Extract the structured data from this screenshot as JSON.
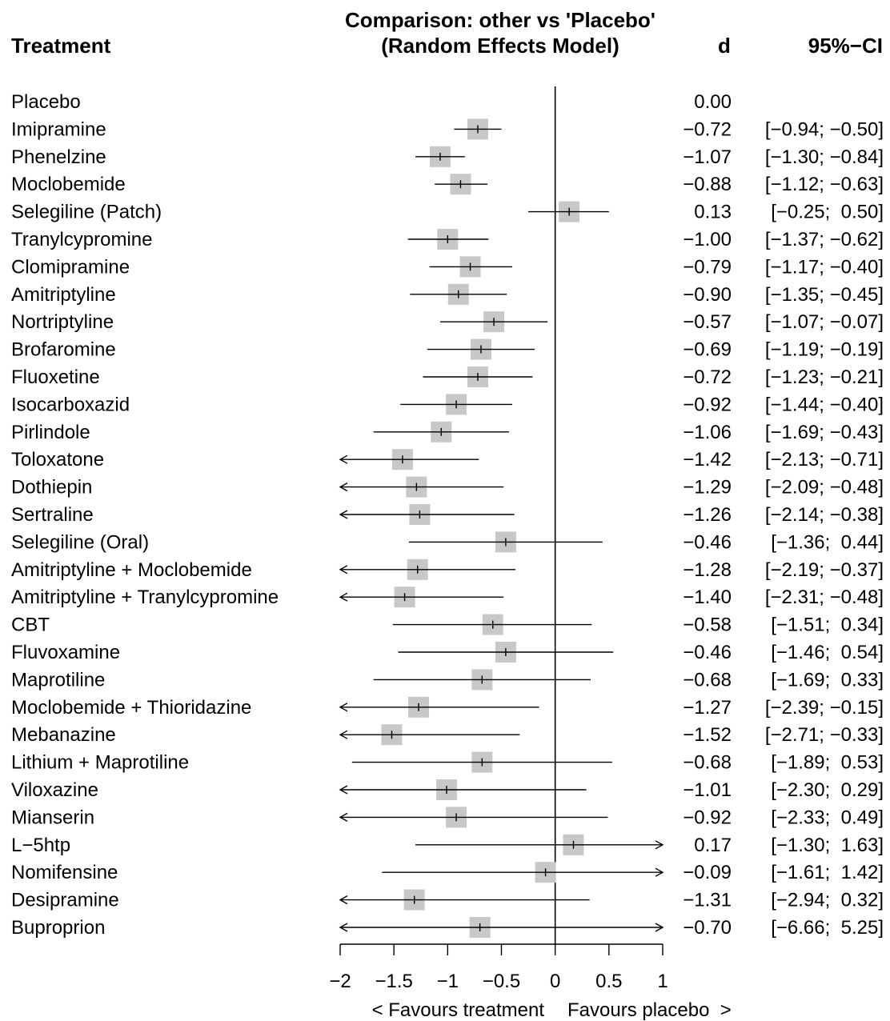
{
  "header": {
    "treatment_label": "Treatment",
    "comparison_line1": "Comparison: other vs 'Placebo'",
    "comparison_line2": "(Random Effects Model)",
    "d_label": "d",
    "ci_label": "95%−CI"
  },
  "chart_data": {
    "type": "forest",
    "reference": "Placebo",
    "rows": [
      {
        "treatment": "Placebo",
        "d": 0.0,
        "lower": null,
        "upper": null,
        "d_text": "0.00",
        "ci_text": ""
      },
      {
        "treatment": "Imipramine",
        "d": -0.72,
        "lower": -0.94,
        "upper": -0.5,
        "d_text": "−0.72",
        "ci_text": "[−0.94; −0.50]"
      },
      {
        "treatment": "Phenelzine",
        "d": -1.07,
        "lower": -1.3,
        "upper": -0.84,
        "d_text": "−1.07",
        "ci_text": "[−1.30; −0.84]"
      },
      {
        "treatment": "Moclobemide",
        "d": -0.88,
        "lower": -1.12,
        "upper": -0.63,
        "d_text": "−0.88",
        "ci_text": "[−1.12; −0.63]"
      },
      {
        "treatment": "Selegiline (Patch)",
        "d": 0.13,
        "lower": -0.25,
        "upper": 0.5,
        "d_text": "0.13",
        "ci_text": "[−0.25;  0.50]"
      },
      {
        "treatment": "Tranylcypromine",
        "d": -1.0,
        "lower": -1.37,
        "upper": -0.62,
        "d_text": "−1.00",
        "ci_text": "[−1.37; −0.62]"
      },
      {
        "treatment": "Clomipramine",
        "d": -0.79,
        "lower": -1.17,
        "upper": -0.4,
        "d_text": "−0.79",
        "ci_text": "[−1.17; −0.40]"
      },
      {
        "treatment": "Amitriptyline",
        "d": -0.9,
        "lower": -1.35,
        "upper": -0.45,
        "d_text": "−0.90",
        "ci_text": "[−1.35; −0.45]"
      },
      {
        "treatment": "Nortriptyline",
        "d": -0.57,
        "lower": -1.07,
        "upper": -0.07,
        "d_text": "−0.57",
        "ci_text": "[−1.07; −0.07]"
      },
      {
        "treatment": "Brofaromine",
        "d": -0.69,
        "lower": -1.19,
        "upper": -0.19,
        "d_text": "−0.69",
        "ci_text": "[−1.19; −0.19]"
      },
      {
        "treatment": "Fluoxetine",
        "d": -0.72,
        "lower": -1.23,
        "upper": -0.21,
        "d_text": "−0.72",
        "ci_text": "[−1.23; −0.21]"
      },
      {
        "treatment": "Isocarboxazid",
        "d": -0.92,
        "lower": -1.44,
        "upper": -0.4,
        "d_text": "−0.92",
        "ci_text": "[−1.44; −0.40]"
      },
      {
        "treatment": "Pirlindole",
        "d": -1.06,
        "lower": -1.69,
        "upper": -0.43,
        "d_text": "−1.06",
        "ci_text": "[−1.69; −0.43]"
      },
      {
        "treatment": "Toloxatone",
        "d": -1.42,
        "lower": -2.13,
        "upper": -0.71,
        "d_text": "−1.42",
        "ci_text": "[−2.13; −0.71]"
      },
      {
        "treatment": "Dothiepin",
        "d": -1.29,
        "lower": -2.09,
        "upper": -0.48,
        "d_text": "−1.29",
        "ci_text": "[−2.09; −0.48]"
      },
      {
        "treatment": "Sertraline",
        "d": -1.26,
        "lower": -2.14,
        "upper": -0.38,
        "d_text": "−1.26",
        "ci_text": "[−2.14; −0.38]"
      },
      {
        "treatment": "Selegiline (Oral)",
        "d": -0.46,
        "lower": -1.36,
        "upper": 0.44,
        "d_text": "−0.46",
        "ci_text": "[−1.36;  0.44]"
      },
      {
        "treatment": "Amitriptyline + Moclobemide",
        "d": -1.28,
        "lower": -2.19,
        "upper": -0.37,
        "d_text": "−1.28",
        "ci_text": "[−2.19; −0.37]"
      },
      {
        "treatment": "Amitriptyline + Tranylcypromine",
        "d": -1.4,
        "lower": -2.31,
        "upper": -0.48,
        "d_text": "−1.40",
        "ci_text": "[−2.31; −0.48]"
      },
      {
        "treatment": "CBT",
        "d": -0.58,
        "lower": -1.51,
        "upper": 0.34,
        "d_text": "−0.58",
        "ci_text": "[−1.51;  0.34]"
      },
      {
        "treatment": "Fluvoxamine",
        "d": -0.46,
        "lower": -1.46,
        "upper": 0.54,
        "d_text": "−0.46",
        "ci_text": "[−1.46;  0.54]"
      },
      {
        "treatment": "Maprotiline",
        "d": -0.68,
        "lower": -1.69,
        "upper": 0.33,
        "d_text": "−0.68",
        "ci_text": "[−1.69;  0.33]"
      },
      {
        "treatment": "Moclobemide + Thioridazine",
        "d": -1.27,
        "lower": -2.39,
        "upper": -0.15,
        "d_text": "−1.27",
        "ci_text": "[−2.39; −0.15]"
      },
      {
        "treatment": "Mebanazine",
        "d": -1.52,
        "lower": -2.71,
        "upper": -0.33,
        "d_text": "−1.52",
        "ci_text": "[−2.71; −0.33]"
      },
      {
        "treatment": "Lithium + Maprotiline",
        "d": -0.68,
        "lower": -1.89,
        "upper": 0.53,
        "d_text": "−0.68",
        "ci_text": "[−1.89;  0.53]"
      },
      {
        "treatment": "Viloxazine",
        "d": -1.01,
        "lower": -2.3,
        "upper": 0.29,
        "d_text": "−1.01",
        "ci_text": "[−2.30;  0.29]"
      },
      {
        "treatment": "Mianserin",
        "d": -0.92,
        "lower": -2.33,
        "upper": 0.49,
        "d_text": "−0.92",
        "ci_text": "[−2.33;  0.49]"
      },
      {
        "treatment": "L−5htp",
        "d": 0.17,
        "lower": -1.3,
        "upper": 1.63,
        "d_text": "0.17",
        "ci_text": "[−1.30;  1.63]"
      },
      {
        "treatment": "Nomifensine",
        "d": -0.09,
        "lower": -1.61,
        "upper": 1.42,
        "d_text": "−0.09",
        "ci_text": "[−1.61;  1.42]"
      },
      {
        "treatment": "Desipramine",
        "d": -1.31,
        "lower": -2.94,
        "upper": 0.32,
        "d_text": "−1.31",
        "ci_text": "[−2.94;  0.32]"
      },
      {
        "treatment": "Buproprion",
        "d": -0.7,
        "lower": -6.66,
        "upper": 5.25,
        "d_text": "−0.70",
        "ci_text": "[−6.66;  5.25]"
      }
    ],
    "xlim": [
      -2,
      1
    ],
    "x_ticks": [
      -2,
      -1.5,
      -1,
      -0.5,
      0,
      0.5,
      1
    ],
    "x_tick_labels": [
      "−2",
      "−1.5",
      "−1",
      "−0.5",
      "0",
      "0.5",
      "1"
    ],
    "xlabel_left": "< Favours treatment",
    "xlabel_right": "Favours placebo  >",
    "reference_line": 0,
    "colors": {
      "square": "#c8c8c8",
      "line": "#000000"
    }
  }
}
